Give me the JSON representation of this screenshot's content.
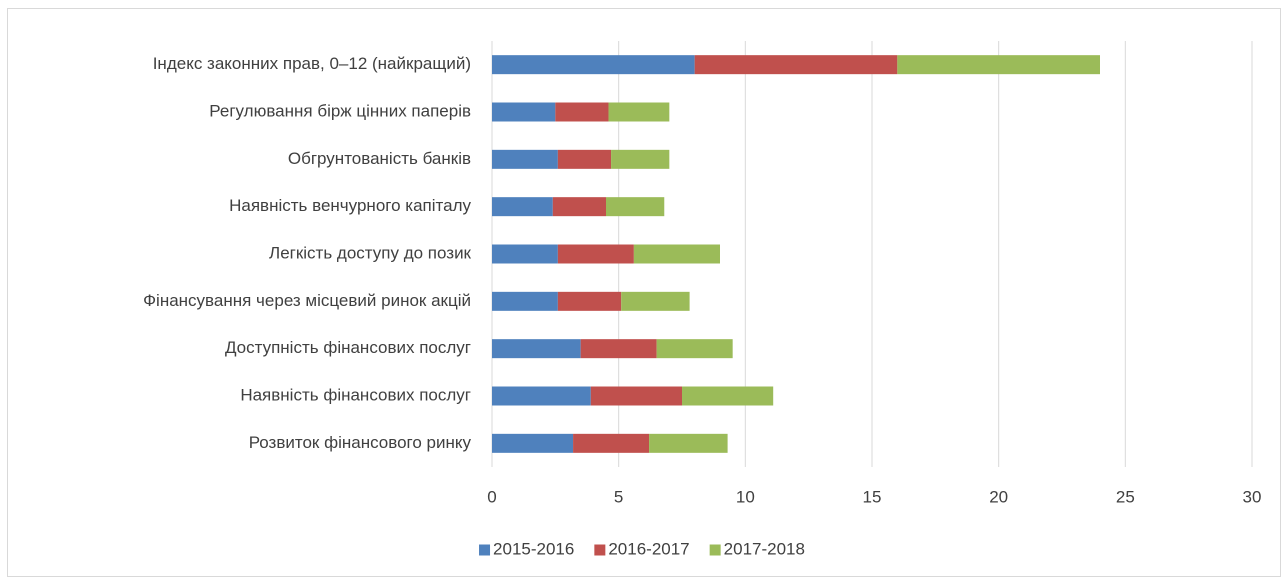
{
  "chart_data": {
    "type": "stacked-bar-horizontal",
    "categories": [
      "Індекс законних прав, 0–12 (найкращий)",
      "Регулювання бірж цінних паперів",
      "Обгрунтованість банків",
      "Наявність венчурного капіталу",
      "Легкість доступу до позик",
      "Фінансування через місцевий ринок акцій",
      "Доступність фінансових послуг",
      "Наявність фінансових послуг",
      "Розвиток фінансового ринку"
    ],
    "series": [
      {
        "name": "2015-2016",
        "color": "#4f81bd",
        "values": [
          8,
          2.5,
          2.6,
          2.4,
          2.6,
          2.6,
          3.5,
          3.9,
          3.2
        ]
      },
      {
        "name": "2016-2017",
        "color": "#c0504d",
        "values": [
          8,
          2.1,
          2.1,
          2.1,
          3.0,
          2.5,
          3.0,
          3.6,
          3.0
        ]
      },
      {
        "name": "2017-2018",
        "color": "#9bbb59",
        "values": [
          8,
          2.4,
          2.3,
          2.3,
          3.4,
          2.7,
          3.0,
          3.6,
          3.1
        ]
      }
    ],
    "xlim": [
      0,
      30
    ],
    "xticks": [
      0,
      5,
      10,
      15,
      20,
      25,
      30
    ],
    "grid": true,
    "legend": "bottom"
  }
}
